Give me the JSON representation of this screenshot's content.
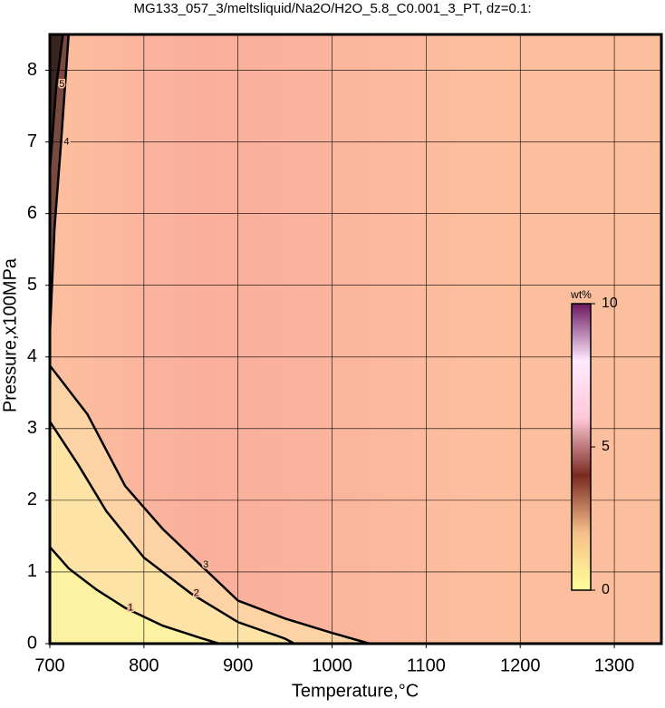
{
  "chart_data": {
    "type": "contour",
    "title": "MG133_057_3/meltsliquid/Na2O/H2O_5.8_C0.001_3_PT, dz=0.1:",
    "xlabel": "Temperature,°C",
    "ylabel": "Pressure,x100MPa",
    "xlim": [
      700,
      1350
    ],
    "xticks": [
      700,
      800,
      900,
      1000,
      1100,
      1200,
      1300
    ],
    "ylim": [
      0,
      8.5
    ],
    "yticks": [
      0,
      1,
      2,
      3,
      4,
      5,
      6,
      7,
      8
    ],
    "grid": true,
    "background": "#fcbf9e",
    "contours": [
      {
        "level": 3,
        "color": "#fdd2a4",
        "x": [
          700,
          740,
          780,
          820,
          860,
          900,
          950,
          1000,
          1040
        ],
        "y": [
          3.88,
          3.2,
          2.2,
          1.6,
          1.1,
          0.6,
          0.35,
          0.15,
          0
        ]
      },
      {
        "level": 2,
        "color": "#fde3a6",
        "x": [
          700,
          730,
          760,
          800,
          850,
          900,
          950,
          960
        ],
        "y": [
          3.1,
          2.5,
          1.85,
          1.2,
          0.7,
          0.3,
          0.07,
          0
        ]
      },
      {
        "level": 1,
        "color": "#fdf3a2",
        "x": [
          700,
          720,
          750,
          780,
          820,
          860,
          880
        ],
        "y": [
          1.35,
          1.05,
          0.75,
          0.5,
          0.25,
          0.08,
          0
        ]
      },
      {
        "level": 4,
        "color": "#7a4a40",
        "x": [
          700,
          705,
          712,
          720
        ],
        "y": [
          4.3,
          5.8,
          7.0,
          8.5
        ]
      },
      {
        "level": 5,
        "color": "#3a2420",
        "x": [
          700,
          707,
          714
        ],
        "y": [
          6.6,
          7.8,
          8.5
        ]
      }
    ],
    "colorbar": {
      "label": "wt%",
      "lim": [
        0,
        10
      ],
      "ticks": [
        0,
        5,
        10
      ],
      "colors": [
        "#ffff99",
        "#f5c08a",
        "#7a2a20",
        "#ffc8d8",
        "#ffeaff",
        "#6b1860"
      ]
    }
  }
}
